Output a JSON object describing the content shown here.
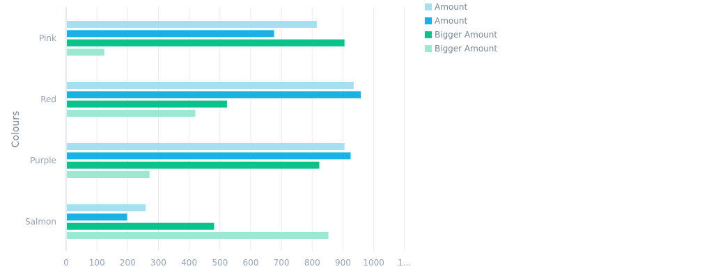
{
  "chart_data": {
    "type": "bar",
    "orientation": "horizontal",
    "title": "",
    "xlabel": "",
    "ylabel": "Colours",
    "xlim": [
      0,
      1100
    ],
    "x_ticks": [
      "0",
      "100",
      "200",
      "300",
      "400",
      "500",
      "600",
      "700",
      "800",
      "900",
      "1000",
      "1..."
    ],
    "x_tick_values": [
      0,
      100,
      200,
      300,
      400,
      500,
      600,
      700,
      800,
      900,
      1000,
      1100
    ],
    "categories": [
      "Pink",
      "Red",
      "Purple",
      "Salmon"
    ],
    "grid": "vertical",
    "legend_position": "top-right",
    "series": [
      {
        "name": "Amount",
        "color": "#a5dff0",
        "values": [
          815,
          935,
          905,
          258
        ]
      },
      {
        "name": "Amount",
        "color": "#1ab2e3",
        "values": [
          676,
          958,
          925,
          198
        ]
      },
      {
        "name": "Bigger Amount",
        "color": "#0cc28b",
        "values": [
          905,
          523,
          823,
          481
        ]
      },
      {
        "name": "Bigger Amount",
        "color": "#9de8d2",
        "values": [
          124,
          420,
          271,
          853
        ]
      }
    ]
  }
}
